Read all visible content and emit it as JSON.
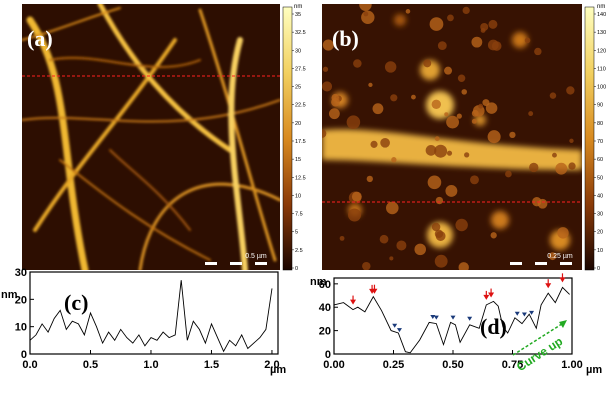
{
  "panels": {
    "a": {
      "label": "(a)",
      "scale_bar": "0.5 µm"
    },
    "b": {
      "label": "(b)",
      "scale_bar": "0.25 µm"
    },
    "c": {
      "label": "(c)"
    },
    "d": {
      "label": "(d)",
      "annotation": "Curve up"
    }
  },
  "colorbars": {
    "a": {
      "unit": "nm",
      "ticks": [
        "35",
        "32.5",
        "30",
        "27.5",
        "25",
        "22.5",
        "20",
        "17.5",
        "15",
        "12.5",
        "10",
        "7.5",
        "5",
        "2.5",
        "0"
      ]
    },
    "b": {
      "unit": "nm",
      "ticks": [
        "140",
        "130",
        "120",
        "110",
        "100",
        "90",
        "80",
        "70",
        "60",
        "50",
        "40",
        "30",
        "20",
        "10",
        "0"
      ]
    }
  },
  "chart_data": [
    {
      "type": "line",
      "panel": "c",
      "title": "",
      "xlabel": "µm",
      "ylabel": "nm",
      "xlim": [
        0,
        2.05
      ],
      "ylim": [
        0,
        30
      ],
      "xticks": [
        "0.0",
        "0.5",
        "1.0",
        "1.5",
        "2.0"
      ],
      "yticks": [
        "0",
        "10",
        "20",
        "30"
      ],
      "series": [
        {
          "x": [
            0.0,
            0.05,
            0.1,
            0.15,
            0.2,
            0.25,
            0.3,
            0.35,
            0.4,
            0.45,
            0.5,
            0.55,
            0.6,
            0.65,
            0.7,
            0.75,
            0.8,
            0.85,
            0.9,
            0.95,
            1.0,
            1.05,
            1.1,
            1.15,
            1.2,
            1.25,
            1.3,
            1.35,
            1.4,
            1.45,
            1.5,
            1.55,
            1.6,
            1.65,
            1.7,
            1.75,
            1.8,
            1.85,
            1.9,
            1.95,
            2.0
          ],
          "y": [
            5,
            7,
            11,
            8,
            13,
            16,
            9,
            12,
            11,
            7,
            15,
            10,
            4,
            8,
            5,
            9,
            6,
            4,
            7,
            3,
            6,
            5,
            8,
            6,
            7,
            27,
            5,
            12,
            9,
            4,
            11,
            6,
            1,
            5,
            3,
            7,
            2,
            4,
            6,
            9,
            24
          ]
        }
      ]
    },
    {
      "type": "line",
      "panel": "d",
      "title": "",
      "xlabel": "µm",
      "ylabel": "nm",
      "xlim": [
        0,
        1.0
      ],
      "ylim": [
        0,
        65
      ],
      "xticks": [
        "0.00",
        "0.25",
        "0.50",
        "0.75",
        "1.00"
      ],
      "yticks": [
        "0",
        "20",
        "40",
        "60"
      ],
      "series": [
        {
          "x": [
            0.0,
            0.04,
            0.08,
            0.1,
            0.13,
            0.165,
            0.2,
            0.24,
            0.27,
            0.3,
            0.32,
            0.36,
            0.4,
            0.43,
            0.46,
            0.49,
            0.51,
            0.53,
            0.57,
            0.61,
            0.64,
            0.67,
            0.69,
            0.71,
            0.73,
            0.76,
            0.79,
            0.82,
            0.85,
            0.87,
            0.9,
            0.93,
            0.96,
            0.99
          ],
          "y": [
            42,
            44,
            38,
            40,
            36,
            49,
            37,
            20,
            18,
            2,
            1,
            12,
            27,
            26,
            8,
            27,
            25,
            10,
            25,
            22,
            42,
            45,
            41,
            23,
            18,
            31,
            26,
            34,
            22,
            42,
            52,
            44,
            57,
            51
          ]
        }
      ],
      "peak_markers": [
        0.08,
        0.16,
        0.17,
        0.64,
        0.66,
        0.9,
        0.96
      ],
      "valley_markers": [
        0.255,
        0.275,
        0.415,
        0.43,
        0.5,
        0.57,
        0.77,
        0.8,
        0.83
      ]
    }
  ]
}
